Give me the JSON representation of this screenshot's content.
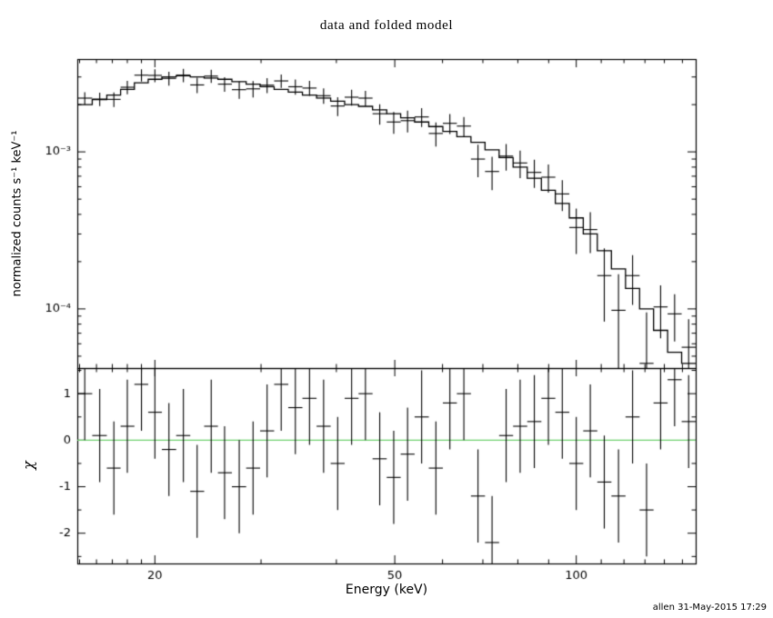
{
  "title": "data and folded model",
  "footer": "allen 31-May-2015 17:29",
  "axes": {
    "x_label": "Energy (keV)",
    "y_label_top": "normalized counts s⁻¹ keV⁻¹",
    "y_label_chi": "χ"
  },
  "chart_data": [
    {
      "type": "scatter",
      "title": "data and folded model",
      "xlabel": "Energy (keV)",
      "ylabel": "normalized counts s⁻¹ keV⁻¹",
      "xscale": "log",
      "yscale": "log",
      "xlim": [
        14.87,
        157.8
      ],
      "ylim": [
        4.2e-05,
        0.0039
      ],
      "grid": false,
      "legend": "none",
      "x_ticks": [
        {
          "v": 20,
          "label": "20"
        },
        {
          "v": 50,
          "label": "50"
        },
        {
          "v": 100,
          "label": "100"
        }
      ],
      "x_minor_ticks": [
        15,
        16,
        17,
        18,
        19,
        30,
        40,
        60,
        70,
        80,
        90,
        110,
        120,
        130,
        140,
        150
      ],
      "y_ticks": [
        {
          "v": 0.0001,
          "label": "10⁻⁴"
        },
        {
          "v": 0.001,
          "label": "10⁻³"
        }
      ],
      "y_minor_ticks": [
        5e-05,
        6e-05,
        7e-05,
        8e-05,
        9e-05,
        0.0002,
        0.0003,
        0.0004,
        0.0005,
        0.0006,
        0.0007,
        0.0008,
        0.0009,
        0.002,
        0.003
      ],
      "scale": 0.001,
      "energy_kev": [
        15.3,
        16.2,
        17.1,
        18.0,
        19.0,
        20.0,
        21.1,
        22.3,
        23.5,
        24.8,
        26.1,
        27.6,
        29.1,
        30.7,
        32.4,
        34.2,
        36.1,
        38.1,
        40.2,
        42.4,
        44.7,
        47.2,
        49.8,
        52.5,
        55.4,
        58.5,
        61.7,
        65.1,
        68.7,
        72.5,
        76.5,
        80.7,
        85.2,
        89.9,
        94.8,
        100.0,
        105.5,
        111.3,
        117.5,
        124.0,
        130.8,
        138.0,
        145.6,
        153.6
      ],
      "model": [
        2.0,
        2.15,
        2.3,
        2.5,
        2.75,
        2.9,
        3.0,
        3.05,
        3.0,
        2.95,
        2.9,
        2.8,
        2.7,
        2.6,
        2.5,
        2.4,
        2.3,
        2.2,
        2.1,
        2.0,
        1.95,
        1.85,
        1.75,
        1.65,
        1.55,
        1.45,
        1.35,
        1.25,
        1.15,
        1.03,
        0.92,
        0.8,
        0.68,
        0.57,
        0.47,
        0.38,
        0.3,
        0.235,
        0.18,
        0.135,
        0.1,
        0.073,
        0.053,
        0.045
      ],
      "data": [
        2.2,
        2.17,
        2.16,
        2.58,
        3.08,
        3.07,
        2.94,
        3.08,
        2.67,
        3.04,
        2.7,
        2.49,
        2.52,
        2.66,
        2.83,
        2.6,
        2.55,
        2.28,
        1.96,
        2.23,
        2.2,
        1.75,
        1.55,
        1.58,
        1.67,
        1.31,
        1.52,
        1.46,
        0.9,
        0.75,
        0.94,
        0.85,
        0.74,
        0.69,
        0.54,
        0.33,
        0.32,
        0.163,
        0.098,
        0.163,
        0.045,
        0.103,
        0.093,
        0.057
      ],
      "data_err": [
        0.2,
        0.215,
        0.23,
        0.25,
        0.275,
        0.29,
        0.3,
        0.305,
        0.3,
        0.295,
        0.29,
        0.31,
        0.3,
        0.29,
        0.275,
        0.29,
        0.28,
        0.26,
        0.27,
        0.26,
        0.25,
        0.26,
        0.245,
        0.25,
        0.23,
        0.23,
        0.22,
        0.21,
        0.21,
        0.18,
        0.18,
        0.17,
        0.15,
        0.14,
        0.12,
        0.106,
        0.093,
        0.08,
        0.068,
        0.057,
        0.05,
        0.038,
        0.031,
        0.029
      ]
    },
    {
      "type": "scatter",
      "ylabel": "χ",
      "xscale": "log",
      "yscale": "linear",
      "ylim": [
        -2.65,
        1.55
      ],
      "y_ticks": [
        {
          "v": -2,
          "label": "-2"
        },
        {
          "v": -1,
          "label": "-1"
        },
        {
          "v": 0,
          "label": "0"
        },
        {
          "v": 1,
          "label": "1"
        }
      ],
      "y_minor_ticks": [
        -2.5,
        -1.5,
        -0.5,
        0.5,
        1.5
      ],
      "zero_line_color": "#6fcf6f",
      "chi": [
        1.0,
        0.1,
        -0.6,
        0.3,
        1.2,
        0.6,
        -0.2,
        0.1,
        -1.1,
        0.3,
        -0.7,
        -1.0,
        -0.6,
        0.2,
        1.2,
        0.7,
        0.9,
        0.3,
        -0.5,
        0.9,
        1.0,
        -0.4,
        -0.8,
        -0.3,
        0.5,
        -0.6,
        0.8,
        1.0,
        -1.2,
        -2.2,
        0.1,
        0.3,
        0.4,
        0.9,
        0.6,
        -0.5,
        0.2,
        -0.9,
        -1.2,
        0.5,
        -1.5,
        0.8,
        1.3,
        0.4
      ],
      "chi_err": 1.0
    }
  ]
}
